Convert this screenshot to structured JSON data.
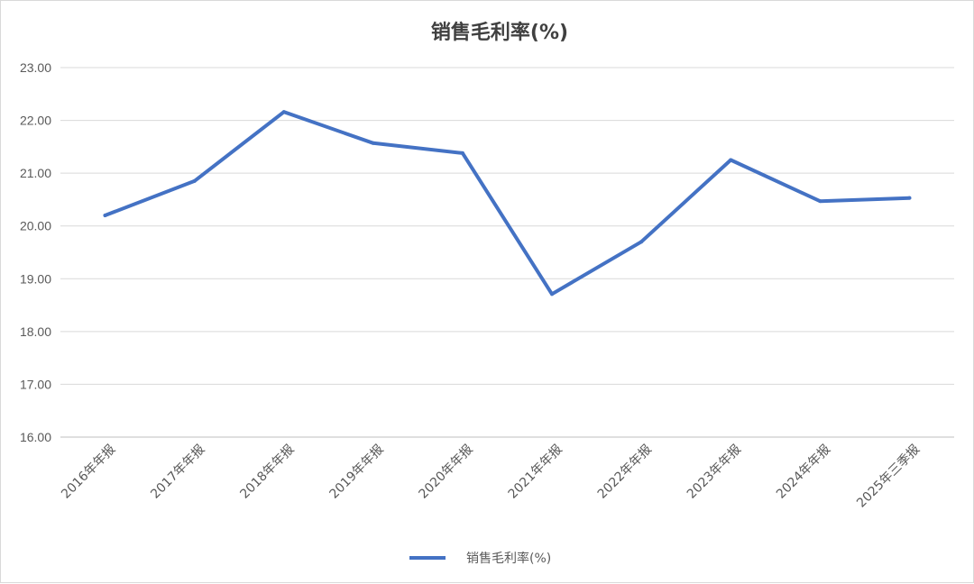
{
  "chart_data": {
    "type": "line",
    "title": "销售毛利率(%)",
    "xlabel": "",
    "ylabel": "",
    "categories": [
      "2016年年报",
      "2017年年报",
      "2018年年报",
      "2019年年报",
      "2020年年报",
      "2021年年报",
      "2022年年报",
      "2023年年报",
      "2024年年报",
      "2025年三季报"
    ],
    "series": [
      {
        "name": "销售毛利率(%)",
        "values": [
          20.2,
          20.85,
          22.16,
          21.57,
          21.38,
          18.71,
          19.7,
          21.25,
          20.47,
          20.53
        ]
      }
    ],
    "ylim": [
      16,
      23
    ],
    "yticks": [
      "16.00",
      "17.00",
      "18.00",
      "19.00",
      "20.00",
      "21.00",
      "22.00",
      "23.00"
    ],
    "grid": true,
    "legend": "bottom",
    "line_color": "#4472c4"
  }
}
